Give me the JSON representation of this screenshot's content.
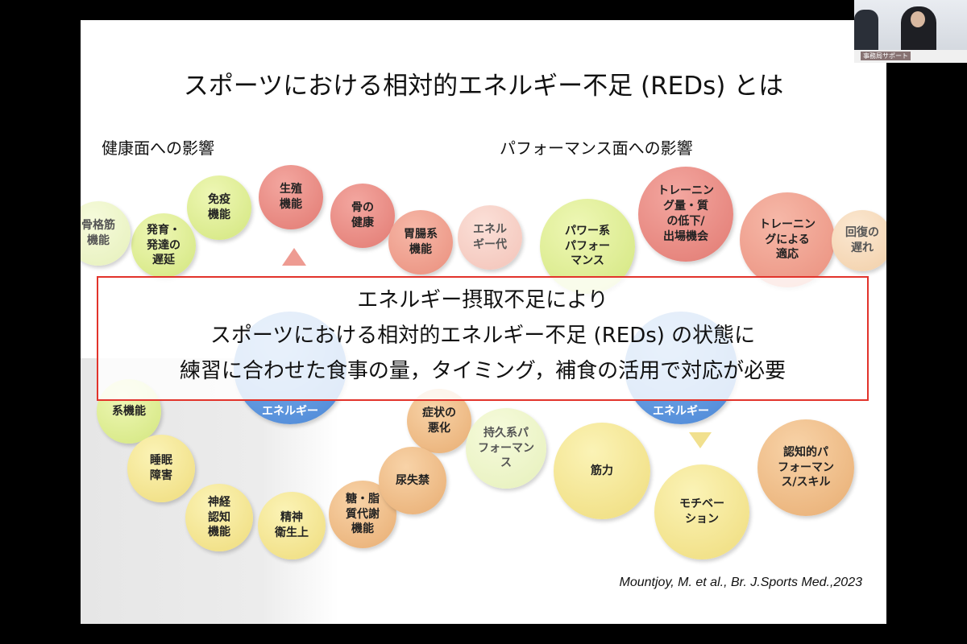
{
  "slide": {
    "title": "スポーツにおける相対的エネルギー不足 (REDs) とは",
    "left_heading": "健康面への影響",
    "right_heading": "パフォーマンス面への影響",
    "health_nodes": [
      {
        "label": "生殖\n機能",
        "color": "#e27a72"
      },
      {
        "label": "免疫\n機能",
        "color": "#d3e67e"
      },
      {
        "label": "骨の\n健康",
        "color": "#e27a72"
      },
      {
        "label": "発育・\n発達の\n遅延",
        "color": "#d3e67e"
      },
      {
        "label": "胃腸系\n機能",
        "color": "#ea8f7d"
      },
      {
        "label": "骨格筋\n機能",
        "color": "#d3e67e"
      },
      {
        "label": "エネル\nギー代",
        "color": "#ea8f7d"
      },
      {
        "label": "エネルギー",
        "color": "#4a86d6"
      },
      {
        "label": "系機能",
        "color": "#d3e67e"
      },
      {
        "label": "症状の\n悪化",
        "color": "#e8ad72"
      },
      {
        "label": "睡眠\n障害",
        "color": "#efdc7c"
      },
      {
        "label": "神経\n認知\n機能",
        "color": "#efdc7c"
      },
      {
        "label": "精神\n衛生上",
        "color": "#efdc7c"
      },
      {
        "label": "糖・脂\n質代謝\n機能",
        "color": "#e8ad72"
      },
      {
        "label": "尿失禁",
        "color": "#e8ad72"
      }
    ],
    "performance_nodes": [
      {
        "label": "トレーニン\nグ量・質\nの低下/\n出場機会",
        "color": "#e27a72"
      },
      {
        "label": "パワー系\nパフォー\nマンス",
        "color": "#d3e67e"
      },
      {
        "label": "トレーニン\nグによる\n適応",
        "color": "#ea8f7d"
      },
      {
        "label": "持久系パ\nフォーマン\nス",
        "color": "#d3e67e"
      },
      {
        "label": "エネルギー",
        "color": "#4a86d6"
      },
      {
        "label": "回復の\n遅れ",
        "color": "#e8ad72"
      },
      {
        "label": "筋力",
        "color": "#efdc7c"
      },
      {
        "label": "モチベー\nション",
        "color": "#efdc7c"
      },
      {
        "label": "認知的パ\nフォーマン\nス/スキル",
        "color": "#e8ad72"
      }
    ],
    "callout": {
      "line1": "エネルギー摂取不足により",
      "line2": "スポーツにおける相対的エネルギー不足 (REDs) の状態に",
      "line3": "練習に合わせた食事の量，タイミング，補食の活用で対応が必要",
      "border_color": "#e2332b"
    },
    "citation": "Mountjoy, M. et al., Br. J.Sports Med.,2023"
  },
  "webcam": {
    "caption": "事務局サポート"
  }
}
